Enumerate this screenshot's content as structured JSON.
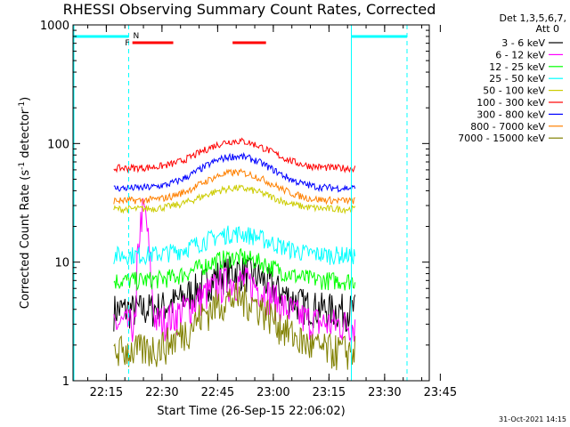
{
  "chart_data": {
    "type": "line",
    "title": "RHESSI Observing Summary Count Rates, Corrected",
    "ylabel": "Corrected Count Rate (s",
    "ylabel_sup1": "-1",
    "ylabel_mid": " detector",
    "ylabel_sup2": "-1",
    "ylabel_end": ")",
    "xlabel": "Start Time (26-Sep-15 22:06:02)",
    "yscale": "log",
    "ylim": [
      1,
      1000
    ],
    "xlim_minutes": [
      0,
      96
    ],
    "x_ticks": [
      "22:15",
      "22:30",
      "22:45",
      "23:00",
      "23:15",
      "23:30",
      "23:45"
    ],
    "y_ticks": [
      "1",
      "10",
      "100",
      "1000"
    ],
    "legend_header": [
      "Det 1,3,5,6,7,",
      "Att 0"
    ],
    "legend_position": "right",
    "flags": {
      "F": "F",
      "N": "N"
    },
    "stamp": "31-Oct-2021 14:15",
    "series": [
      {
        "name": "3 - 6 keV",
        "color": "#000000",
        "base": 4.0,
        "peak": 8.5
      },
      {
        "name": "6 - 12 keV",
        "color": "#ff00ff",
        "base": 3.0,
        "peak": 7.0
      },
      {
        "name": "12 - 25 keV",
        "color": "#00ff00",
        "base": 7.0,
        "peak": 11.0
      },
      {
        "name": "25 - 50 keV",
        "color": "#00ffff",
        "base": 11.5,
        "peak": 17.5
      },
      {
        "name": "50 - 100 keV",
        "color": "#cccc00",
        "base": 28.0,
        "peak": 42.0
      },
      {
        "name": "100 - 300 keV",
        "color": "#ff0000",
        "base": 62.0,
        "peak": 105.0
      },
      {
        "name": "300 - 800 keV",
        "color": "#0000ff",
        "base": 42.0,
        "peak": 78.0
      },
      {
        "name": "800 - 7000 keV",
        "color": "#ff8000",
        "base": 33.0,
        "peak": 57.0
      },
      {
        "name": "7000 - 15000 keV",
        "color": "#808000",
        "base": 1.8,
        "peak": 5.0
      }
    ],
    "segments_minutes": [
      [
        11,
        76
      ]
    ],
    "attenuator_bars_minutes": [
      [
        0,
        15
      ],
      [
        75,
        90
      ]
    ],
    "flare_bars_minutes": [
      [
        16,
        27
      ],
      [
        43,
        52
      ]
    ]
  }
}
